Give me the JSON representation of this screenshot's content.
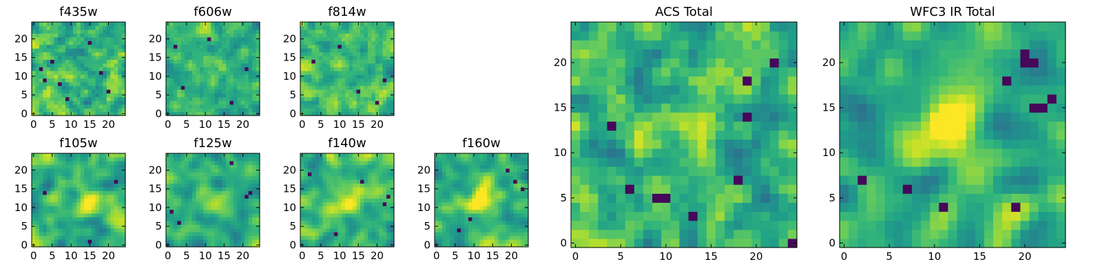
{
  "chart_data": [
    {
      "id": "f435w",
      "type": "heatmap",
      "title": "f435w",
      "grid": 24,
      "xlim": [
        0,
        24
      ],
      "ylim": [
        0,
        24
      ],
      "xticks": [
        0,
        5,
        10,
        15,
        20
      ],
      "yticks": [
        0,
        5,
        10,
        15,
        20
      ],
      "seed": 11,
      "sigma": 0.5,
      "blob": [
        12,
        12,
        0.0
      ],
      "darkspots": [
        [
          3,
          9
        ],
        [
          5,
          14
        ],
        [
          7,
          8
        ],
        [
          2,
          12
        ],
        [
          18,
          11
        ],
        [
          20,
          6
        ],
        [
          9,
          4
        ],
        [
          15,
          19
        ]
      ]
    },
    {
      "id": "f606w",
      "type": "heatmap",
      "title": "f606w",
      "grid": 24,
      "xlim": [
        0,
        24
      ],
      "ylim": [
        0,
        24
      ],
      "xticks": [
        0,
        5,
        10,
        15,
        20
      ],
      "yticks": [
        0,
        5,
        10,
        15,
        20
      ],
      "seed": 22,
      "sigma": 0.5,
      "blob": [
        12,
        12,
        0.0
      ],
      "darkspots": [
        [
          2,
          18
        ],
        [
          11,
          20
        ],
        [
          4,
          7
        ],
        [
          17,
          3
        ],
        [
          21,
          12
        ]
      ]
    },
    {
      "id": "f814w",
      "type": "heatmap",
      "title": "f814w",
      "grid": 24,
      "xlim": [
        0,
        24
      ],
      "ylim": [
        0,
        24
      ],
      "xticks": [
        0,
        5,
        10,
        15,
        20
      ],
      "yticks": [
        0,
        5,
        10,
        15,
        20
      ],
      "seed": 33,
      "sigma": 0.5,
      "blob": [
        12,
        12,
        0.0
      ],
      "darkspots": [
        [
          20,
          3
        ],
        [
          10,
          18
        ],
        [
          15,
          6
        ],
        [
          3,
          14
        ],
        [
          22,
          9
        ]
      ]
    },
    {
      "id": "f105w",
      "type": "heatmap",
      "title": "f105w",
      "grid": 24,
      "xlim": [
        0,
        24
      ],
      "ylim": [
        0,
        24
      ],
      "xticks": [
        0,
        5,
        10,
        15,
        20
      ],
      "yticks": [
        0,
        5,
        10,
        15,
        20
      ],
      "seed": 44,
      "sigma": 1.1,
      "blob": [
        14,
        12,
        0.35
      ],
      "darkspots": [
        [
          15,
          1
        ],
        [
          22,
          17
        ],
        [
          3,
          14
        ]
      ]
    },
    {
      "id": "f125w",
      "type": "heatmap",
      "title": "f125w",
      "grid": 24,
      "xlim": [
        0,
        24
      ],
      "ylim": [
        0,
        24
      ],
      "xticks": [
        0,
        5,
        10,
        15,
        20
      ],
      "yticks": [
        0,
        5,
        10,
        15,
        20
      ],
      "seed": 55,
      "sigma": 1.1,
      "blob": [
        13,
        12,
        0.3
      ],
      "darkspots": [
        [
          21,
          13
        ],
        [
          22,
          14
        ],
        [
          1,
          9
        ],
        [
          3,
          6
        ],
        [
          17,
          22
        ]
      ]
    },
    {
      "id": "f140w",
      "type": "heatmap",
      "title": "f140w",
      "grid": 24,
      "xlim": [
        0,
        24
      ],
      "ylim": [
        0,
        24
      ],
      "xticks": [
        0,
        5,
        10,
        15,
        20
      ],
      "yticks": [
        0,
        5,
        10,
        15,
        20
      ],
      "seed": 66,
      "sigma": 1.1,
      "blob": [
        13,
        12,
        0.35
      ],
      "darkspots": [
        [
          16,
          17
        ],
        [
          22,
          11
        ],
        [
          23,
          13
        ],
        [
          9,
          3
        ],
        [
          2,
          19
        ]
      ]
    },
    {
      "id": "f160w",
      "type": "heatmap",
      "title": "f160w",
      "grid": 24,
      "xlim": [
        0,
        24
      ],
      "ylim": [
        0,
        24
      ],
      "xticks": [
        0,
        5,
        10,
        15,
        20
      ],
      "yticks": [
        0,
        5,
        10,
        15,
        20
      ],
      "seed": 77,
      "sigma": 1.1,
      "blob": [
        12,
        12,
        0.45
      ],
      "darkspots": [
        [
          19,
          20
        ],
        [
          21,
          17
        ],
        [
          23,
          15
        ],
        [
          6,
          4
        ],
        [
          9,
          7
        ]
      ]
    },
    {
      "id": "acs",
      "type": "heatmap",
      "title": "ACS Total",
      "grid": 24,
      "xlim": [
        0,
        24
      ],
      "ylim": [
        0,
        24
      ],
      "xticks": [
        0,
        5,
        10,
        15,
        20
      ],
      "yticks": [
        0,
        5,
        10,
        15,
        20
      ],
      "seed": 88,
      "sigma": 0.6,
      "blob": [
        12,
        13,
        0.2
      ],
      "darkspots": [
        [
          9,
          5
        ],
        [
          10,
          5
        ],
        [
          4,
          13
        ],
        [
          6,
          6
        ],
        [
          13,
          3
        ],
        [
          19,
          14
        ],
        [
          22,
          20
        ],
        [
          24,
          0
        ],
        [
          19,
          18
        ],
        [
          18,
          7
        ]
      ]
    },
    {
      "id": "wfc3",
      "type": "heatmap",
      "title": "WFC3 IR Total",
      "grid": 24,
      "xlim": [
        0,
        24
      ],
      "ylim": [
        0,
        24
      ],
      "xticks": [
        0,
        5,
        10,
        15,
        20
      ],
      "yticks": [
        0,
        5,
        10,
        15,
        20
      ],
      "seed": 99,
      "sigma": 1.0,
      "blob": [
        12,
        13,
        0.5
      ],
      "darkspots": [
        [
          20,
          20
        ],
        [
          21,
          20
        ],
        [
          20,
          21
        ],
        [
          22,
          15
        ],
        [
          21,
          15
        ],
        [
          23,
          16
        ],
        [
          7,
          6
        ],
        [
          11,
          4
        ],
        [
          19,
          4
        ],
        [
          2,
          7
        ],
        [
          18,
          18
        ]
      ]
    }
  ]
}
